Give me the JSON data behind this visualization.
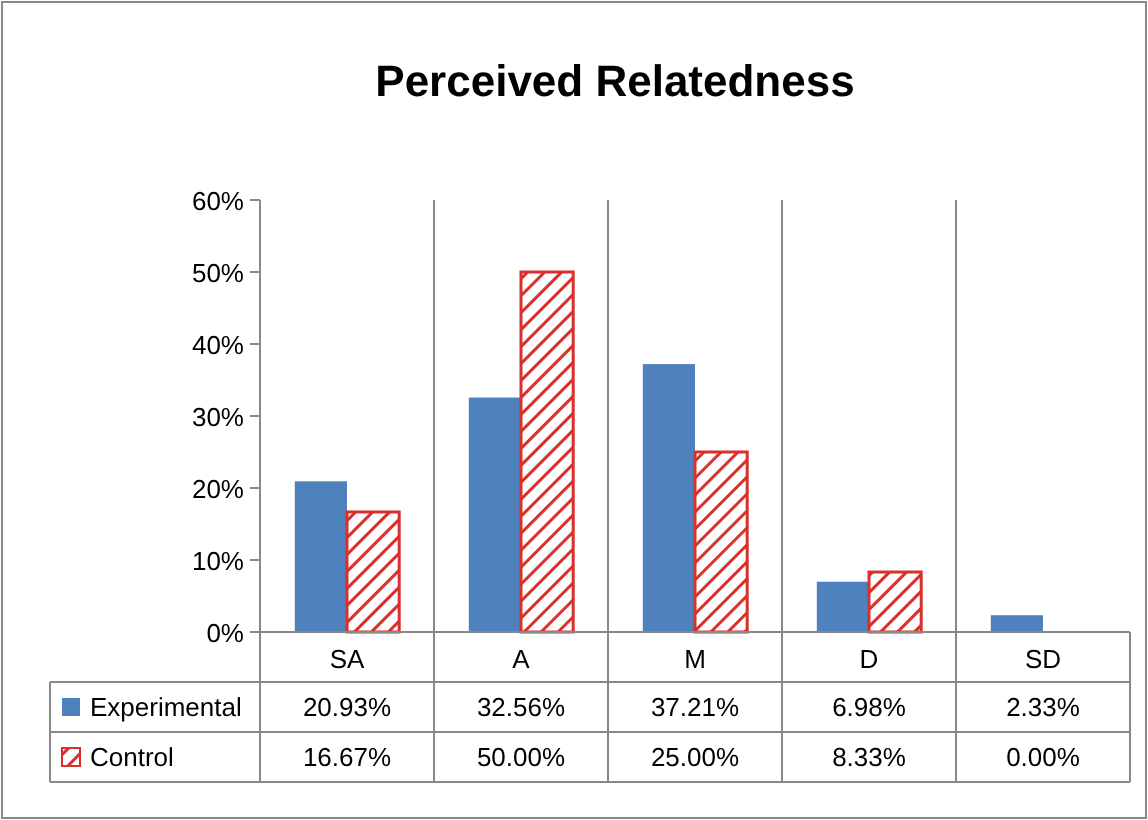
{
  "chart_data": {
    "type": "bar",
    "title": "Perceived Relatedness",
    "categories": [
      "SA",
      "A",
      "M",
      "D",
      "SD"
    ],
    "series": [
      {
        "name": "Experimental",
        "color": "#4f81bd",
        "values": [
          20.93,
          32.56,
          37.21,
          6.98,
          2.33
        ],
        "value_labels": [
          "20.93%",
          "32.56%",
          "37.21%",
          "6.98%",
          "2.33%"
        ]
      },
      {
        "name": "Control",
        "color": "#d9302b",
        "values": [
          16.67,
          50,
          25,
          8.33,
          0
        ],
        "value_labels": [
          "16.67%",
          "50.00%",
          "25.00%",
          "8.33%",
          "0.00%"
        ]
      }
    ],
    "ylim": [
      0,
      60
    ],
    "legend": "bottom left",
    "yticks": [
      {
        "value": 0,
        "label": "0%"
      },
      {
        "value": 10,
        "label": "10%"
      },
      {
        "value": 20,
        "label": "20%"
      },
      {
        "value": 30,
        "label": "30%"
      },
      {
        "value": 40,
        "label": "40%"
      },
      {
        "value": 50,
        "label": "50%"
      },
      {
        "value": 60,
        "label": "60%"
      }
    ]
  }
}
